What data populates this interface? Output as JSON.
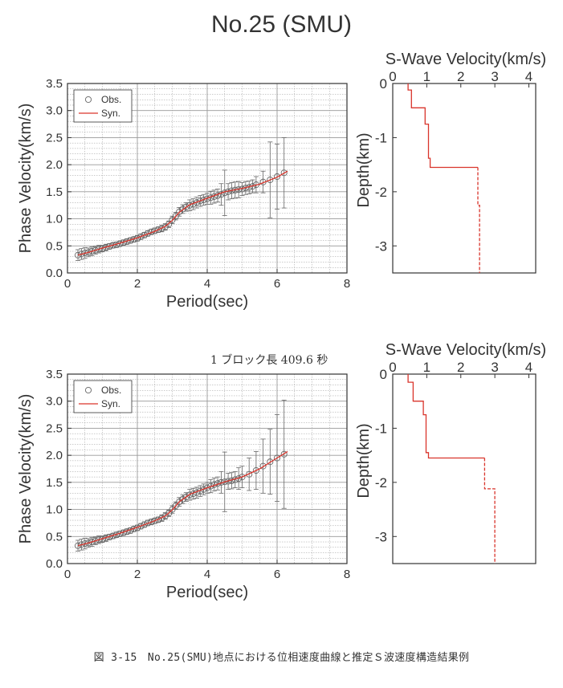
{
  "page_title": "No.25 (SMU)",
  "block_note": "1 ブロック長 409.6 秒",
  "caption": "図 3-15　No.25(SMU)地点における位相速度曲線と推定Ｓ波速度構造結果例",
  "colors": {
    "obs": "#666666",
    "syn": "#d9342b",
    "axis": "#333333",
    "grid": "#999999",
    "vel": "#d9342b"
  },
  "chart_data": [
    {
      "type": "scatter",
      "title": "",
      "xlabel": "Period(sec)",
      "ylabel": "Phase Velocity(km/s)",
      "xlim": [
        0,
        8
      ],
      "ylim": [
        0,
        3.5
      ],
      "xticks": [
        "0",
        "2",
        "4",
        "6",
        "8"
      ],
      "yticks": [
        "0.0",
        "0.5",
        "1.0",
        "1.5",
        "2.0",
        "2.5",
        "3.0",
        "3.5"
      ],
      "grid": true,
      "legend": "top-left",
      "series": [
        {
          "name": "Obs.",
          "kind": "points",
          "x": [
            0.3,
            0.4,
            0.5,
            0.6,
            0.7,
            0.8,
            0.9,
            1.0,
            1.1,
            1.2,
            1.3,
            1.4,
            1.5,
            1.6,
            1.7,
            1.8,
            1.9,
            2.0,
            2.1,
            2.2,
            2.3,
            2.4,
            2.5,
            2.6,
            2.7,
            2.8,
            2.9,
            3.0,
            3.1,
            3.2,
            3.3,
            3.4,
            3.5,
            3.6,
            3.7,
            3.8,
            3.9,
            4.0,
            4.1,
            4.2,
            4.3,
            4.4,
            4.5,
            4.6,
            4.7,
            4.8,
            4.9,
            5.0,
            5.1,
            5.2,
            5.3,
            5.4,
            5.6,
            5.8,
            6.0,
            6.2
          ],
          "y": [
            0.33,
            0.35,
            0.37,
            0.38,
            0.4,
            0.42,
            0.44,
            0.45,
            0.47,
            0.49,
            0.51,
            0.52,
            0.54,
            0.56,
            0.58,
            0.6,
            0.62,
            0.64,
            0.67,
            0.7,
            0.73,
            0.76,
            0.78,
            0.8,
            0.82,
            0.85,
            0.9,
            0.98,
            1.05,
            1.13,
            1.18,
            1.22,
            1.25,
            1.27,
            1.3,
            1.33,
            1.35,
            1.37,
            1.39,
            1.41,
            1.43,
            1.45,
            1.48,
            1.5,
            1.52,
            1.53,
            1.54,
            1.55,
            1.57,
            1.58,
            1.6,
            1.63,
            1.68,
            1.72,
            1.78,
            1.85
          ],
          "err": [
            0.1,
            0.1,
            0.1,
            0.08,
            0.08,
            0.07,
            0.07,
            0.06,
            0.06,
            0.05,
            0.05,
            0.05,
            0.05,
            0.05,
            0.05,
            0.05,
            0.05,
            0.05,
            0.05,
            0.05,
            0.05,
            0.05,
            0.05,
            0.05,
            0.06,
            0.06,
            0.06,
            0.07,
            0.07,
            0.08,
            0.08,
            0.08,
            0.1,
            0.1,
            0.1,
            0.1,
            0.1,
            0.1,
            0.12,
            0.12,
            0.12,
            0.2,
            0.42,
            0.15,
            0.15,
            0.15,
            0.15,
            0.12,
            0.12,
            0.12,
            0.12,
            0.15,
            0.2,
            0.7,
            0.6,
            0.65
          ]
        },
        {
          "name": "Syn.",
          "kind": "line",
          "x": [
            0.3,
            0.6,
            1.0,
            1.5,
            2.0,
            2.5,
            2.8,
            3.0,
            3.2,
            3.5,
            4.0,
            4.5,
            5.0,
            5.5,
            6.0,
            6.3
          ],
          "y": [
            0.33,
            0.38,
            0.46,
            0.55,
            0.65,
            0.77,
            0.86,
            0.97,
            1.12,
            1.26,
            1.38,
            1.5,
            1.56,
            1.64,
            1.77,
            1.88
          ]
        }
      ]
    },
    {
      "type": "line",
      "title": "S-Wave Velocity(km/s)",
      "xlabel": "S-Wave Velocity(km/s)",
      "ylabel": "Depth(km)",
      "xlim": [
        0,
        4.2
      ],
      "ylim": [
        -3.5,
        0
      ],
      "xticks": [
        "0",
        "1",
        "2",
        "3",
        "4"
      ],
      "yticks": [
        "0",
        "-1",
        "-2",
        "-3"
      ],
      "grid": false,
      "series": [
        {
          "kind": "step",
          "x": [
            0.45,
            0.45,
            0.55,
            0.55,
            0.95,
            0.95,
            1.05,
            1.05,
            1.1,
            1.1,
            2.5,
            2.5
          ],
          "y": [
            0,
            -0.12,
            -0.12,
            -0.45,
            -0.45,
            -0.75,
            -0.75,
            -1.38,
            -1.38,
            -1.55,
            -1.55,
            -1.55
          ]
        },
        {
          "kind": "dashed",
          "x": [
            2.5,
            2.5,
            2.55,
            2.55
          ],
          "y": [
            -1.55,
            -2.25,
            -2.25,
            -3.5
          ]
        }
      ]
    },
    {
      "type": "scatter",
      "title": "",
      "xlabel": "Period(sec)",
      "ylabel": "Phase Velocity(km/s)",
      "xlim": [
        0,
        8
      ],
      "ylim": [
        0,
        3.5
      ],
      "xticks": [
        "0",
        "2",
        "4",
        "6",
        "8"
      ],
      "yticks": [
        "0.0",
        "0.5",
        "1.0",
        "1.5",
        "2.0",
        "2.5",
        "3.0",
        "3.5"
      ],
      "grid": true,
      "legend": "top-left",
      "series": [
        {
          "name": "Obs.",
          "kind": "points",
          "x": [
            0.3,
            0.4,
            0.5,
            0.6,
            0.7,
            0.8,
            0.9,
            1.0,
            1.1,
            1.2,
            1.3,
            1.4,
            1.5,
            1.6,
            1.7,
            1.8,
            1.9,
            2.0,
            2.1,
            2.2,
            2.3,
            2.4,
            2.5,
            2.6,
            2.7,
            2.8,
            2.9,
            3.0,
            3.1,
            3.2,
            3.3,
            3.4,
            3.5,
            3.6,
            3.7,
            3.8,
            3.9,
            4.0,
            4.1,
            4.2,
            4.3,
            4.4,
            4.5,
            4.6,
            4.7,
            4.8,
            4.9,
            5.0,
            5.2,
            5.4,
            5.6,
            5.8,
            6.0,
            6.2
          ],
          "y": [
            0.33,
            0.35,
            0.37,
            0.38,
            0.4,
            0.42,
            0.44,
            0.45,
            0.47,
            0.49,
            0.51,
            0.53,
            0.55,
            0.57,
            0.59,
            0.61,
            0.64,
            0.66,
            0.69,
            0.72,
            0.75,
            0.77,
            0.79,
            0.81,
            0.84,
            0.88,
            0.93,
            1.0,
            1.07,
            1.14,
            1.19,
            1.23,
            1.27,
            1.29,
            1.31,
            1.34,
            1.37,
            1.4,
            1.43,
            1.46,
            1.48,
            1.5,
            1.51,
            1.52,
            1.53,
            1.55,
            1.57,
            1.6,
            1.65,
            1.72,
            1.8,
            1.88,
            1.95,
            2.02
          ],
          "err": [
            0.1,
            0.1,
            0.1,
            0.08,
            0.08,
            0.07,
            0.07,
            0.06,
            0.06,
            0.05,
            0.05,
            0.05,
            0.05,
            0.05,
            0.05,
            0.05,
            0.05,
            0.05,
            0.05,
            0.05,
            0.05,
            0.05,
            0.05,
            0.05,
            0.06,
            0.06,
            0.06,
            0.07,
            0.07,
            0.08,
            0.08,
            0.08,
            0.1,
            0.1,
            0.1,
            0.1,
            0.1,
            0.1,
            0.12,
            0.12,
            0.12,
            0.2,
            0.55,
            0.15,
            0.15,
            0.15,
            0.2,
            0.2,
            0.3,
            0.35,
            0.5,
            0.6,
            0.8,
            1.0
          ]
        },
        {
          "name": "Syn.",
          "kind": "line",
          "x": [
            0.3,
            0.6,
            1.0,
            1.5,
            2.0,
            2.5,
            2.8,
            3.0,
            3.2,
            3.5,
            4.0,
            4.5,
            5.0,
            5.5,
            6.0,
            6.3
          ],
          "y": [
            0.33,
            0.38,
            0.46,
            0.56,
            0.67,
            0.79,
            0.88,
            0.99,
            1.14,
            1.28,
            1.4,
            1.51,
            1.6,
            1.75,
            1.95,
            2.07
          ]
        }
      ]
    },
    {
      "type": "line",
      "title": "S-Wave Velocity(km/s)",
      "xlabel": "S-Wave Velocity(km/s)",
      "ylabel": "Depth(km)",
      "xlim": [
        0,
        4.2
      ],
      "ylim": [
        -3.5,
        0
      ],
      "xticks": [
        "0",
        "1",
        "2",
        "3",
        "4"
      ],
      "yticks": [
        "0",
        "-1",
        "-2",
        "-3"
      ],
      "grid": false,
      "series": [
        {
          "kind": "step",
          "x": [
            0.45,
            0.45,
            0.6,
            0.6,
            0.9,
            0.9,
            0.98,
            0.98,
            1.05,
            1.05,
            2.7,
            2.7
          ],
          "y": [
            0,
            -0.15,
            -0.15,
            -0.5,
            -0.5,
            -0.75,
            -0.75,
            -1.45,
            -1.45,
            -1.55,
            -1.55,
            -1.55
          ]
        },
        {
          "kind": "dashed",
          "x": [
            2.7,
            2.7,
            3.0,
            3.0
          ],
          "y": [
            -1.55,
            -2.12,
            -2.12,
            -3.5
          ]
        }
      ]
    }
  ]
}
